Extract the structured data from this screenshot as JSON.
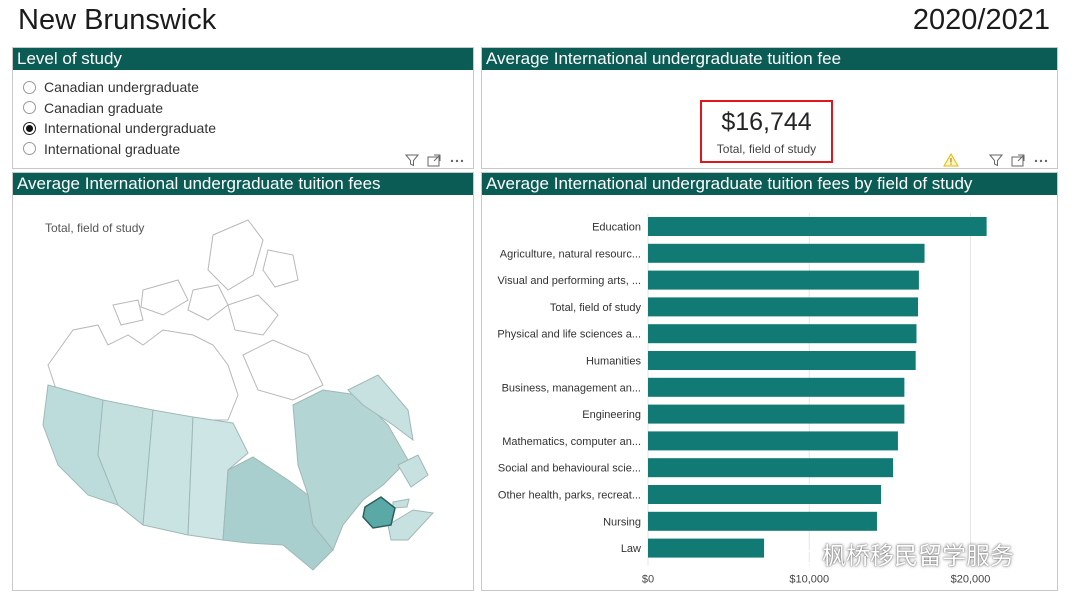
{
  "page": {
    "title": "New Brunswick",
    "year": "2020/2021"
  },
  "level_panel": {
    "header": "Level of study",
    "options": [
      {
        "label": "Canadian undergraduate",
        "checked": false
      },
      {
        "label": "Canadian graduate",
        "checked": false
      },
      {
        "label": "International undergraduate",
        "checked": true
      },
      {
        "label": "International graduate",
        "checked": false
      }
    ]
  },
  "kpi_panel": {
    "header": "Average International undergraduate tuition fee",
    "value": "$16,744",
    "label": "Total, field of study"
  },
  "map_panel": {
    "header": "Average International undergraduate tuition fees",
    "label": "Total, field of study",
    "highlight_color": "#5aa9a6"
  },
  "bars_panel": {
    "header": "Average International undergraduate tuition fees by field of study"
  },
  "watermark": "枫桥移民留学服务",
  "colors": {
    "header_bg": "#0b5c55",
    "bar": "#117a74",
    "kpi_border": "#e0151d"
  },
  "chart_data": {
    "type": "bar",
    "orientation": "horizontal",
    "categories": [
      "Education",
      "Agriculture, natural resourc...",
      "Visual and performing arts, ...",
      "Total, field of study",
      "Physical and life sciences a...",
      "Humanities",
      "Business, management an...",
      "Engineering",
      "Mathematics, computer an...",
      "Social and behavioural scie...",
      "Other health, parks, recreat...",
      "Nursing",
      "Law"
    ],
    "values": [
      21000,
      17150,
      16800,
      16744,
      16650,
      16600,
      15900,
      15900,
      15500,
      15200,
      14450,
      14200,
      7200
    ],
    "xlim": [
      0,
      24000
    ],
    "xticks": [
      {
        "value": 0,
        "label": "$0"
      },
      {
        "value": 10000,
        "label": "$10,000"
      },
      {
        "value": 20000,
        "label": "$20,000"
      }
    ],
    "grid": true
  }
}
